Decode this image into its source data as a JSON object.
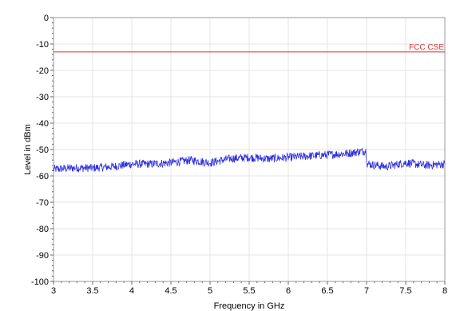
{
  "chart_data": {
    "type": "line",
    "xlabel": "Frequency in GHz",
    "ylabel": "Level in dBm",
    "xlim": [
      3,
      8
    ],
    "ylim": [
      -100,
      0
    ],
    "x_ticks": [
      "3",
      "3.5",
      "4",
      "4.5",
      "5",
      "5.5",
      "6",
      "6.5",
      "7",
      "7.5",
      "8"
    ],
    "y_ticks": [
      "0",
      "-10",
      "-20",
      "-30",
      "-40",
      "-50",
      "-60",
      "-70",
      "-80",
      "-90",
      "-100"
    ],
    "grid": true,
    "series": [
      {
        "x": [
          3.0,
          3.25,
          3.5,
          3.75,
          4.0,
          4.25,
          4.5,
          4.75,
          5.0,
          5.25,
          5.5,
          5.75,
          6.0,
          6.25,
          6.5,
          6.75,
          6.99,
          7.01,
          7.25,
          7.5,
          7.75,
          8.0
        ],
        "y": [
          -57.5,
          -57.0,
          -57.0,
          -56.5,
          -55.5,
          -55.5,
          -55.0,
          -54.0,
          -55.0,
          -53.5,
          -53.0,
          -53.5,
          -53.0,
          -52.5,
          -52.0,
          -51.5,
          -50.5,
          -55.5,
          -56.5,
          -55.0,
          -56.0,
          -55.5
        ],
        "color": "#3030e0"
      }
    ],
    "reference_lines": [
      {
        "label": "FCC CSE",
        "y": -13,
        "color": "#e03030"
      }
    ]
  }
}
